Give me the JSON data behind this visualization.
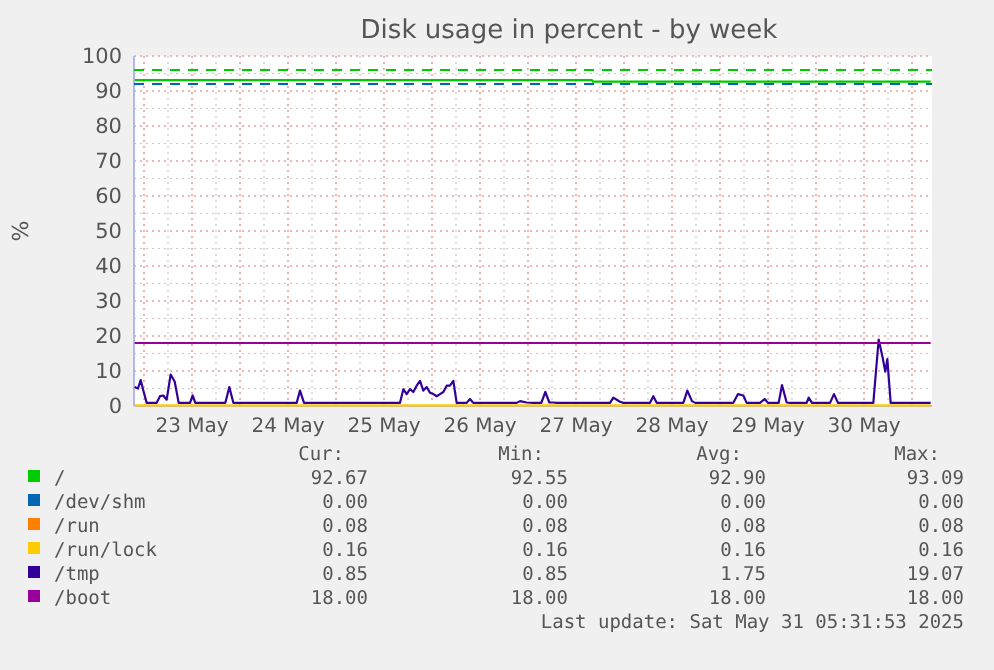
{
  "chart_data": {
    "type": "line",
    "title": "Disk usage in percent - by week",
    "ylabel": "%",
    "x": [
      "2025-05-22T21:40",
      "2025-05-31T04:40"
    ],
    "xlim": [
      "2025-05-22T21:30",
      "2025-05-31T05:00"
    ],
    "xticks": [
      {
        "value": "2025-05-23T00:00",
        "label": null
      },
      {
        "value": "2025-05-23T12:00",
        "label": "23 May"
      },
      {
        "value": "2025-05-24T00:00",
        "label": null
      },
      {
        "value": "2025-05-24T12:00",
        "label": "24 May"
      },
      {
        "value": "2025-05-25T00:00",
        "label": null
      },
      {
        "value": "2025-05-25T12:00",
        "label": "25 May"
      },
      {
        "value": "2025-05-26T00:00",
        "label": null
      },
      {
        "value": "2025-05-26T12:00",
        "label": "26 May"
      },
      {
        "value": "2025-05-27T00:00",
        "label": null
      },
      {
        "value": "2025-05-27T12:00",
        "label": "27 May"
      },
      {
        "value": "2025-05-28T00:00",
        "label": null
      },
      {
        "value": "2025-05-28T12:00",
        "label": "28 May"
      },
      {
        "value": "2025-05-29T00:00",
        "label": null
      },
      {
        "value": "2025-05-29T12:00",
        "label": "29 May"
      },
      {
        "value": "2025-05-30T00:00",
        "label": null
      },
      {
        "value": "2025-05-30T12:00",
        "label": "30 May"
      },
      {
        "value": "2025-05-31T00:00",
        "label": null
      }
    ],
    "ylim": [
      0,
      100
    ],
    "yticks": [
      0,
      10,
      20,
      30,
      40,
      50,
      60,
      70,
      80,
      90,
      100
    ],
    "grid": true,
    "legend": "bottom left",
    "ref_lines": [
      {
        "axis": "y",
        "value": 96,
        "color": "#00cc00",
        "line_style": "dashed"
      },
      {
        "axis": "y",
        "value": 92,
        "color": "#0066b3",
        "line_style": "dashed"
      }
    ],
    "series": [
      {
        "name": "/",
        "color": "#00cc00",
        "x": [
          "2025-05-22T21:40",
          "2025-05-27T16:00",
          "2025-05-27T16:10",
          "2025-05-31T04:40"
        ],
        "values": [
          93.1,
          93.1,
          92.7,
          92.7
        ]
      },
      {
        "name": "/dev/shm",
        "color": "#0066b3",
        "values": [
          null,
          null
        ]
      },
      {
        "name": "/run",
        "color": "#ff8000",
        "values": [
          null,
          null
        ]
      },
      {
        "name": "/run/lock",
        "color": "#ffcc00",
        "values": [
          0.2,
          0.2
        ]
      },
      {
        "name": "/tmp",
        "color": "#330099",
        "x": [
          "2025-05-22T21:40",
          "2025-05-22T22:30",
          "2025-05-22T23:10",
          "2025-05-22T23:50",
          "2025-05-23T00:40",
          "2025-05-23T03:10",
          "2025-05-23T04:00",
          "2025-05-23T04:50",
          "2025-05-23T05:40",
          "2025-05-23T06:40",
          "2025-05-23T07:40",
          "2025-05-23T08:40",
          "2025-05-23T11:30",
          "2025-05-23T12:10",
          "2025-05-23T12:50",
          "2025-05-23T20:20",
          "2025-05-23T21:20",
          "2025-05-23T22:20",
          "2025-05-24T14:10",
          "2025-05-24T15:00",
          "2025-05-24T16:00",
          "2025-05-25T16:00",
          "2025-05-25T16:50",
          "2025-05-25T17:40",
          "2025-05-25T18:30",
          "2025-05-25T19:20",
          "2025-05-25T20:10",
          "2025-05-25T21:00",
          "2025-05-25T21:50",
          "2025-05-25T22:40",
          "2025-05-25T23:30",
          "2025-05-26T00:20",
          "2025-05-26T01:10",
          "2025-05-26T02:00",
          "2025-05-26T02:50",
          "2025-05-26T03:40",
          "2025-05-26T04:30",
          "2025-05-26T05:20",
          "2025-05-26T06:10",
          "2025-05-26T08:40",
          "2025-05-26T09:30",
          "2025-05-26T10:20",
          "2025-05-26T21:10",
          "2025-05-26T22:00",
          "2025-05-26T23:40",
          "2025-05-27T01:20",
          "2025-05-27T03:20",
          "2025-05-27T04:20",
          "2025-05-27T05:20",
          "2025-05-27T06:20",
          "2025-05-27T07:10",
          "2025-05-27T20:30",
          "2025-05-27T21:20",
          "2025-05-27T23:00",
          "2025-05-27T23:50",
          "2025-05-28T06:30",
          "2025-05-28T07:20",
          "2025-05-28T08:10",
          "2025-05-28T14:50",
          "2025-05-28T15:50",
          "2025-05-28T17:00",
          "2025-05-28T17:50",
          "2025-05-29T03:20",
          "2025-05-29T04:30",
          "2025-05-29T05:50",
          "2025-05-29T06:40",
          "2025-05-29T10:00",
          "2025-05-29T11:10",
          "2025-05-29T12:00",
          "2025-05-29T14:40",
          "2025-05-29T15:30",
          "2025-05-29T16:40",
          "2025-05-29T17:30",
          "2025-05-29T21:40",
          "2025-05-29T22:10",
          "2025-05-29T23:00",
          "2025-05-30T03:30",
          "2025-05-30T04:30",
          "2025-05-30T05:30",
          "2025-05-30T14:20",
          "2025-05-30T15:40",
          "2025-05-30T16:40",
          "2025-05-30T17:20",
          "2025-05-30T17:50",
          "2025-05-30T18:40",
          "2025-05-31T04:40"
        ],
        "values": [
          5.4,
          5,
          7.4,
          4.4,
          0.9,
          0.9,
          2.8,
          3,
          1.8,
          9,
          7,
          0.9,
          0.9,
          3,
          0.9,
          0.9,
          5.4,
          0.9,
          0.9,
          4.4,
          0.9,
          0.9,
          4.8,
          3.4,
          4.8,
          4,
          5.8,
          7.2,
          4.4,
          5.4,
          3.8,
          3.4,
          2.8,
          3.4,
          4,
          5.8,
          5.8,
          7.2,
          0.9,
          0.9,
          2,
          0.9,
          0.9,
          1.4,
          1,
          0.9,
          0.9,
          4,
          1,
          1,
          0.9,
          0.9,
          2.4,
          1.2,
          0.9,
          0.9,
          2.8,
          0.9,
          0.9,
          4.4,
          1.4,
          0.9,
          0.9,
          3.4,
          3,
          0.9,
          0.9,
          2,
          0.9,
          0.9,
          6,
          1,
          0.9,
          0.9,
          2.4,
          0.9,
          0.9,
          3.4,
          0.9,
          0.9,
          19,
          13.8,
          9.8,
          13.4,
          0.9,
          0.9
        ]
      },
      {
        "name": "/boot",
        "color": "#990099",
        "values": [
          18,
          18
        ]
      }
    ],
    "annotations": [
      "Cur:",
      "Min:",
      "Avg:",
      "Max:",
      "92.67",
      "92.55",
      "92.90",
      "93.09",
      "0.00",
      "0.00",
      "0.00",
      "0.00",
      "0.08",
      "0.08",
      "0.08",
      "0.08",
      "0.16",
      "0.16",
      "0.16",
      "0.16",
      "0.85",
      "0.85",
      "1.75",
      "19.07",
      "18.00",
      "18.00",
      "18.00",
      "18.00",
      "Last update: Sat May 31 05:31:53 2025"
    ]
  }
}
